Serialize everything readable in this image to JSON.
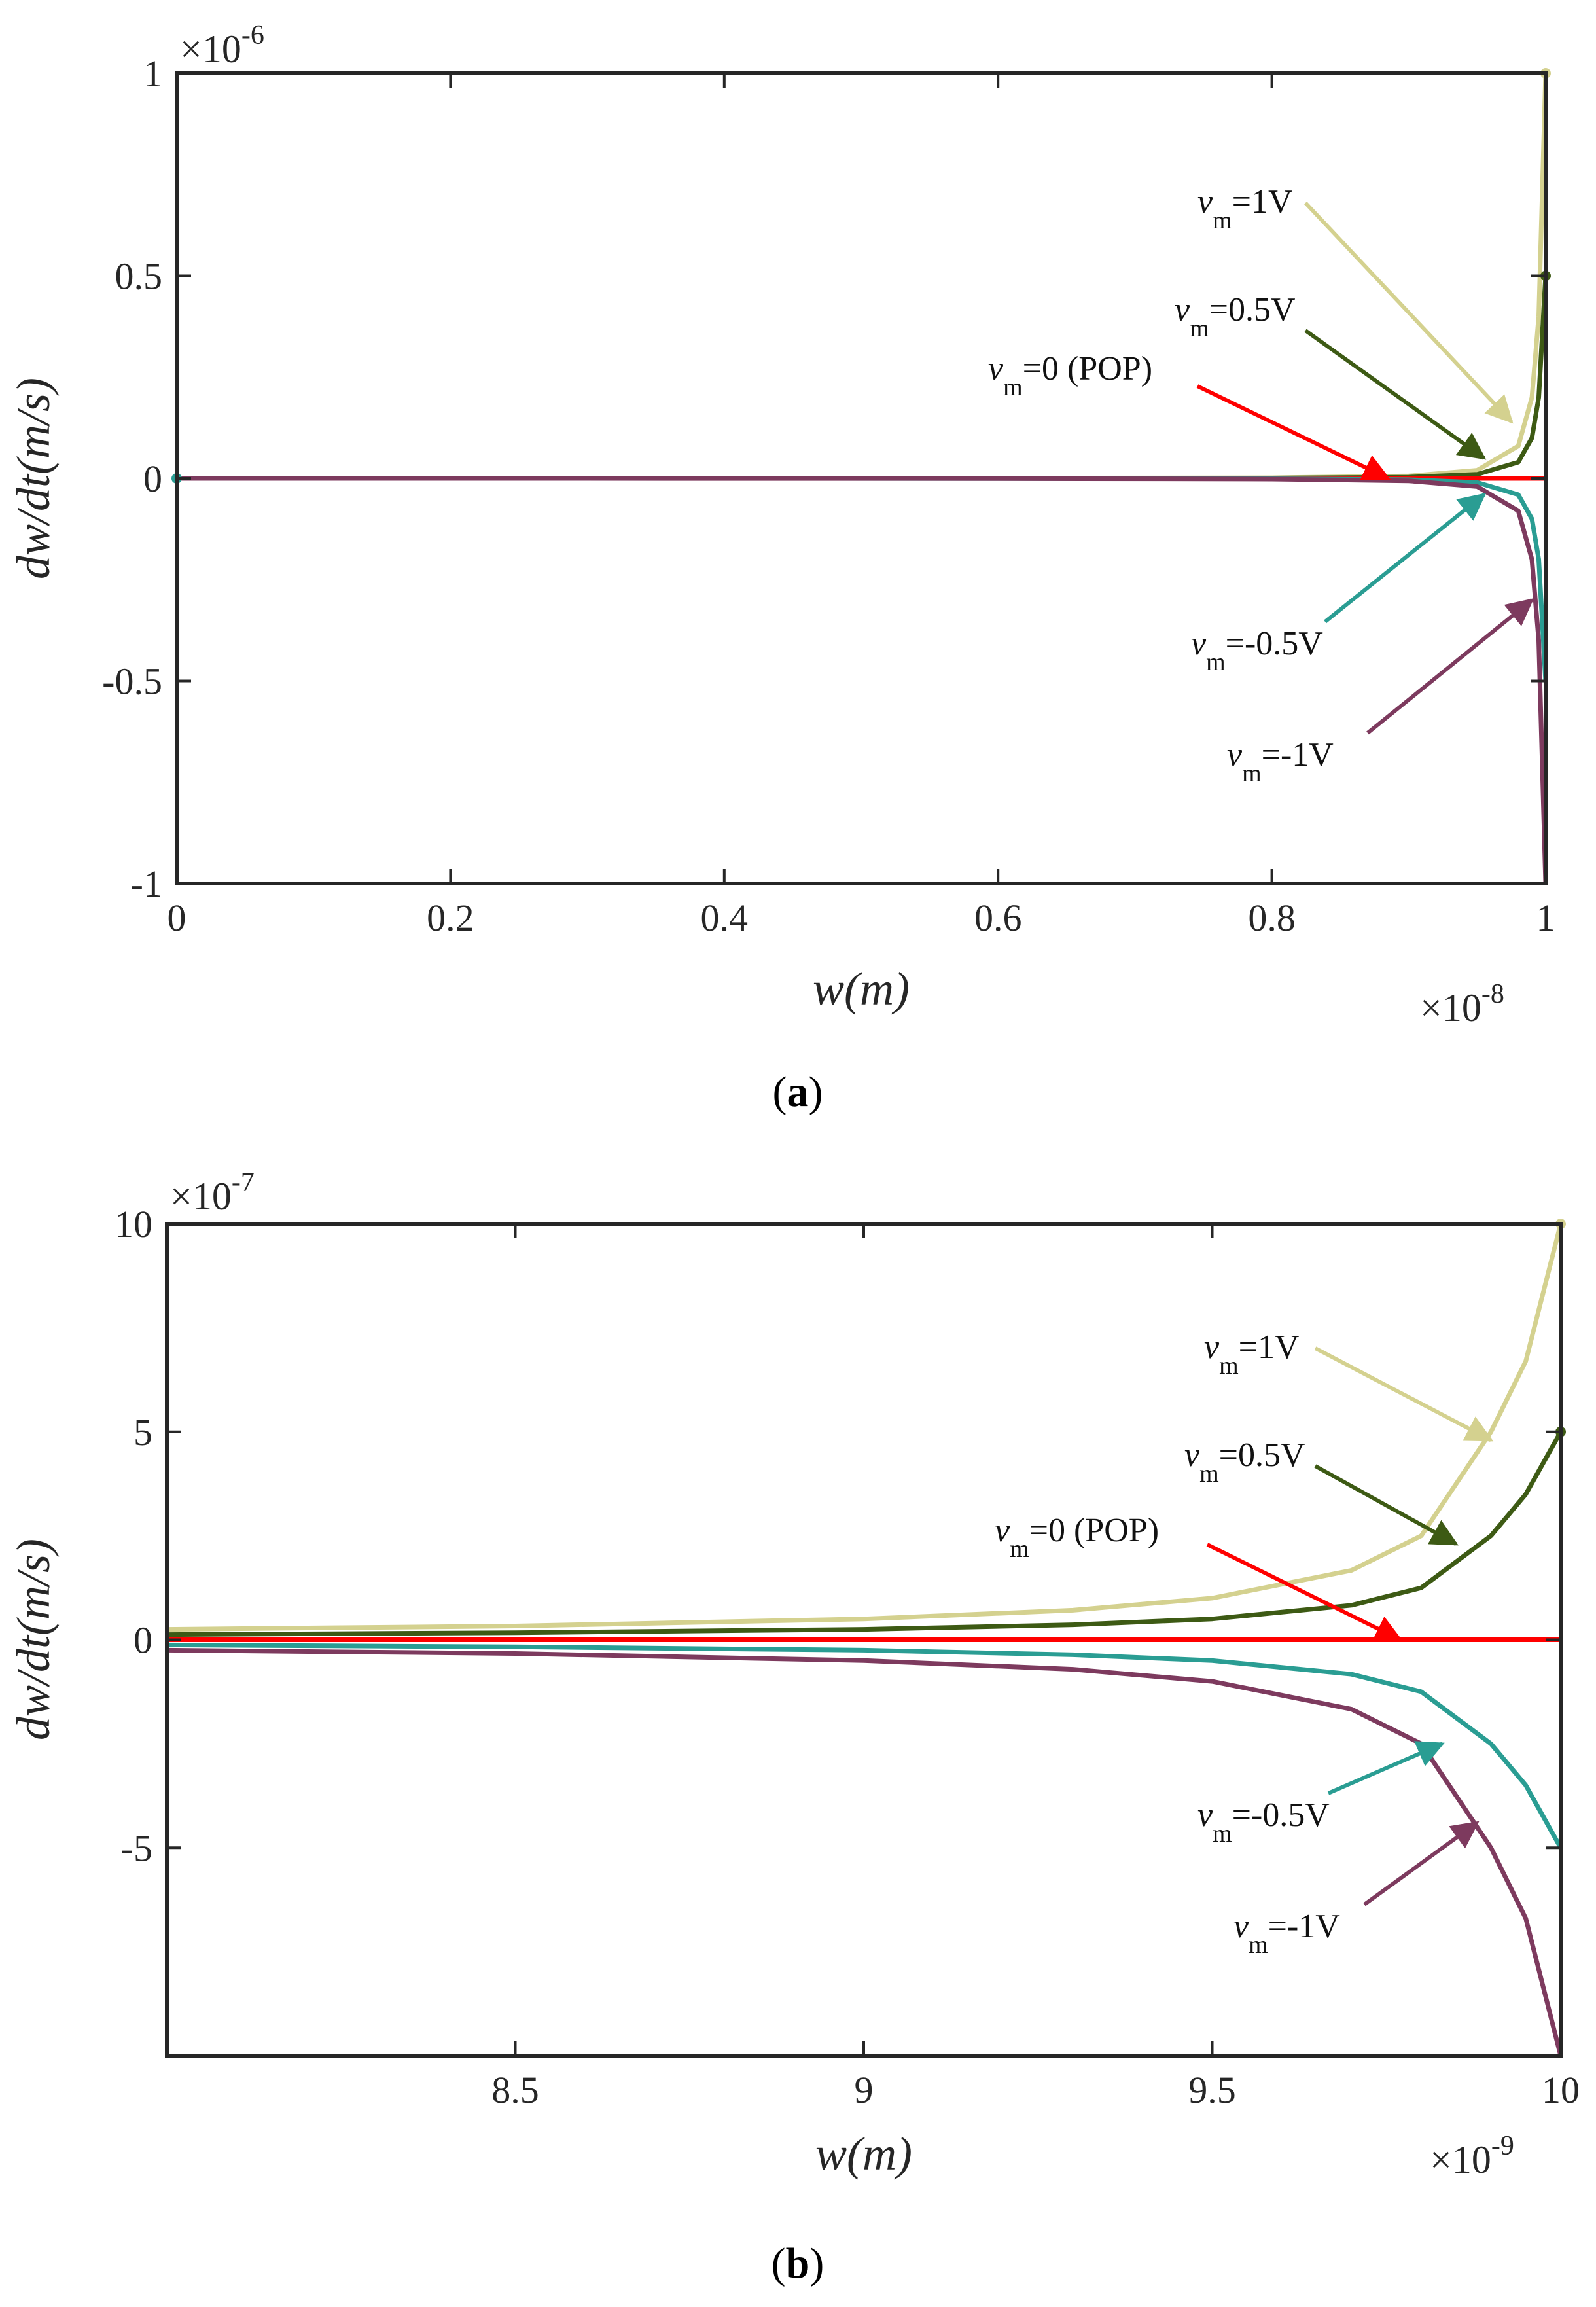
{
  "chart_data": [
    {
      "type": "line",
      "panel_label": "a",
      "xlabel": "w(m)",
      "ylabel": "dw/dt(m/s)",
      "x_exponent": "×10",
      "x_exponent_power": "-8",
      "y_exponent": "×10",
      "y_exponent_power": "-6",
      "xlim": [
        0,
        1
      ],
      "ylim": [
        -1,
        1
      ],
      "x_scale": 1e-08,
      "y_scale": 1e-06,
      "x_ticks": [
        0,
        0.2,
        0.4,
        0.6,
        0.8,
        1
      ],
      "x_tick_labels": [
        "0",
        "0.2",
        "0.4",
        "0.6",
        "0.8",
        "1"
      ],
      "y_ticks": [
        -1,
        -0.5,
        0,
        0.5,
        1
      ],
      "y_tick_labels": [
        "-1",
        "-0.5",
        "0",
        "0.5",
        "1"
      ],
      "grid": false,
      "series": [
        {
          "name": "vm=1V",
          "color": "#d4d18f",
          "v": 1,
          "x": [
            0,
            0.2,
            0.4,
            0.6,
            0.8,
            0.9,
            0.95,
            0.98,
            0.99,
            0.995,
            1
          ],
          "y": [
            0,
            3e-05,
            9e-05,
            0.0003,
            0.0016,
            0.006,
            0.02,
            0.08,
            0.2,
            0.4,
            1
          ]
        },
        {
          "name": "vm=0.5V",
          "color": "#3d5a14",
          "v": 0.5,
          "x": [
            0,
            0.2,
            0.4,
            0.6,
            0.8,
            0.9,
            0.95,
            0.98,
            0.99,
            0.995,
            1
          ],
          "y": [
            0,
            1.5e-05,
            4.5e-05,
            0.00015,
            0.0008,
            0.003,
            0.01,
            0.04,
            0.1,
            0.2,
            0.5
          ]
        },
        {
          "name": "vm=0 (POP)",
          "color": "#ff0000",
          "v": 0,
          "x": [
            0,
            1
          ],
          "y": [
            0,
            0
          ]
        },
        {
          "name": "vm=-0.5V",
          "color": "#2a9d93",
          "v": -0.5,
          "x": [
            0,
            0.2,
            0.4,
            0.6,
            0.8,
            0.9,
            0.95,
            0.98,
            0.99,
            0.995,
            1
          ],
          "y": [
            0,
            -1.5e-05,
            -4.5e-05,
            -0.00015,
            -0.0008,
            -0.003,
            -0.01,
            -0.04,
            -0.1,
            -0.2,
            -0.5
          ]
        },
        {
          "name": "vm=-1V",
          "color": "#7d3a5e",
          "v": -1,
          "x": [
            0,
            0.2,
            0.4,
            0.6,
            0.8,
            0.9,
            0.95,
            0.98,
            0.99,
            0.995,
            1
          ],
          "y": [
            0,
            -3e-05,
            -9e-05,
            -0.0003,
            -0.0016,
            -0.006,
            -0.02,
            -0.08,
            -0.2,
            -0.4,
            -1
          ]
        }
      ],
      "annotations": [
        {
          "v": "v",
          "sub": "m",
          "rest": "=1V",
          "series": 0
        },
        {
          "v": "v",
          "sub": "m",
          "rest": "=0.5V",
          "series": 1
        },
        {
          "v": "v",
          "sub": "m",
          "rest": "=0 (POP)",
          "series": 2
        },
        {
          "v": "v",
          "sub": "m",
          "rest": "=-0.5V",
          "series": 3
        },
        {
          "v": "v",
          "sub": "m",
          "rest": "=-1V",
          "series": 4
        }
      ]
    },
    {
      "type": "line",
      "panel_label": "b",
      "xlabel": "w(m)",
      "ylabel": "dw/dt(m/s)",
      "x_exponent": "×10",
      "x_exponent_power": "-9",
      "y_exponent": "×10",
      "y_exponent_power": "-7",
      "xlim": [
        8,
        10
      ],
      "ylim": [
        -10,
        10
      ],
      "x_scale": 1e-09,
      "y_scale": 1e-07,
      "x_ticks": [
        8.5,
        9,
        9.5,
        10
      ],
      "x_tick_labels": [
        "8.5",
        "9",
        "9.5",
        "10"
      ],
      "y_ticks": [
        -5,
        0,
        5,
        10
      ],
      "y_tick_labels": [
        "-5",
        "0",
        "5",
        "10"
      ],
      "grid": false,
      "series": [
        {
          "name": "vm=1V",
          "color": "#d4d18f",
          "v": 1,
          "x": [
            8,
            8.5,
            9,
            9.3,
            9.5,
            9.7,
            9.8,
            9.9,
            9.95,
            10
          ],
          "y": [
            0.25,
            0.33,
            0.5,
            0.71,
            1,
            1.67,
            2.5,
            5,
            6.7,
            10
          ]
        },
        {
          "name": "vm=0.5V",
          "color": "#3d5a14",
          "v": 0.5,
          "x": [
            8,
            8.5,
            9,
            9.3,
            9.5,
            9.7,
            9.8,
            9.9,
            9.95,
            10
          ],
          "y": [
            0.125,
            0.17,
            0.25,
            0.36,
            0.5,
            0.83,
            1.25,
            2.5,
            3.5,
            5
          ]
        },
        {
          "name": "vm=0 (POP)",
          "color": "#ff0000",
          "v": 0,
          "x": [
            8,
            10
          ],
          "y": [
            0,
            0
          ]
        },
        {
          "name": "vm=-0.5V",
          "color": "#2a9d93",
          "v": -0.5,
          "x": [
            8,
            8.5,
            9,
            9.3,
            9.5,
            9.7,
            9.8,
            9.9,
            9.95,
            10
          ],
          "y": [
            -0.125,
            -0.17,
            -0.25,
            -0.36,
            -0.5,
            -0.83,
            -1.25,
            -2.5,
            -3.5,
            -5
          ]
        },
        {
          "name": "vm=-1V",
          "color": "#7d3a5e",
          "v": -1,
          "x": [
            8,
            8.5,
            9,
            9.3,
            9.5,
            9.7,
            9.8,
            9.9,
            9.95,
            10
          ],
          "y": [
            -0.25,
            -0.33,
            -0.5,
            -0.71,
            -1,
            -1.67,
            -2.5,
            -5,
            -6.7,
            -10
          ]
        }
      ],
      "annotations": [
        {
          "v": "v",
          "sub": "m",
          "rest": "=1V",
          "series": 0
        },
        {
          "v": "v",
          "sub": "m",
          "rest": "=0.5V",
          "series": 1
        },
        {
          "v": "v",
          "sub": "m",
          "rest": "=0 (POP)",
          "series": 2
        },
        {
          "v": "v",
          "sub": "m",
          "rest": "=-0.5V",
          "series": 3
        },
        {
          "v": "v",
          "sub": "m",
          "rest": "=-1V",
          "series": 4
        }
      ]
    }
  ]
}
